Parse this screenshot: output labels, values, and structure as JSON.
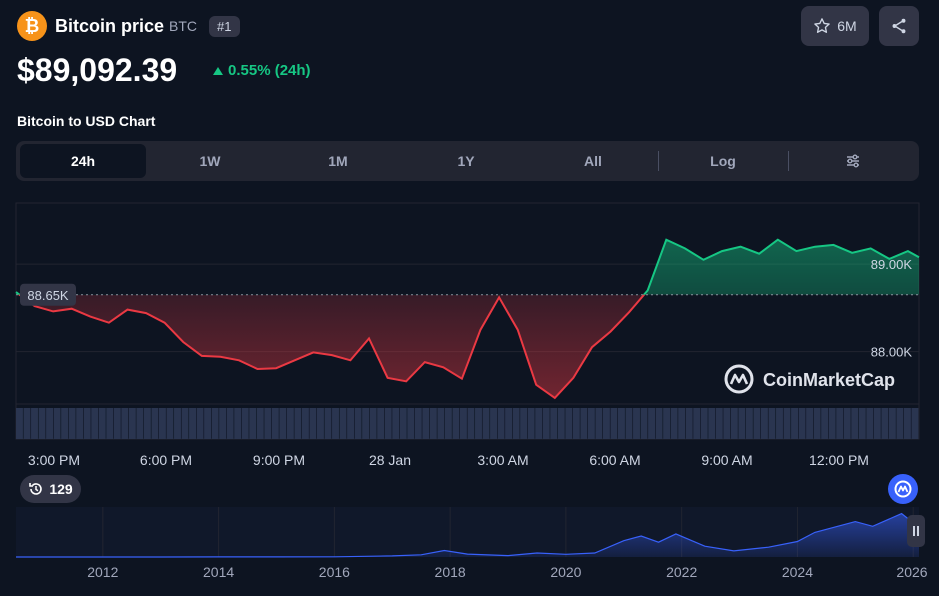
{
  "header": {
    "coin_logo_glyph": "₿",
    "title": "Bitcoin price",
    "symbol": "BTC",
    "rank": "#1",
    "watchlist_count": "6M"
  },
  "price": {
    "value": "$89,092.39",
    "change": "0.55% (24h)",
    "change_color": "#16c784"
  },
  "chart_title": "Bitcoin to USD Chart",
  "tabs": [
    {
      "label": "24h",
      "active": true
    },
    {
      "label": "1W"
    },
    {
      "label": "1M"
    },
    {
      "label": "1Y"
    },
    {
      "label": "All"
    },
    {
      "label": "Log"
    }
  ],
  "watermark": "CoinMarketCap",
  "history_badge": "129",
  "colors": {
    "up": "#16c784",
    "down": "#ea3943",
    "brush": "#3861fb",
    "background": "#0d1421"
  },
  "icons": [
    "bitcoin-logo",
    "star-icon",
    "share-icon",
    "sliders-icon",
    "history-icon",
    "coinmarketcap-logo",
    "pause-icon"
  ],
  "chart_data": [
    {
      "type": "line",
      "title": "",
      "xlabel": "",
      "ylabel": "",
      "baseline": 88650,
      "baseline_label": "88.65K",
      "ylim": [
        87400,
        89700
      ],
      "y_ticks": [
        {
          "value": 89000,
          "label": "89.00K"
        },
        {
          "value": 88000,
          "label": "88.00K"
        }
      ],
      "x_ticks": [
        "3:00 PM",
        "6:00 PM",
        "9:00 PM",
        "28 Jan",
        "3:00 AM",
        "6:00 AM",
        "9:00 AM",
        "12:00 PM"
      ],
      "x": [
        0,
        0.5,
        1,
        1.5,
        2,
        2.5,
        3,
        3.5,
        4,
        4.5,
        5,
        5.5,
        6,
        6.5,
        7,
        7.5,
        8,
        8.5,
        9,
        9.5,
        10,
        10.5,
        11,
        11.5,
        12,
        12.5,
        13,
        13.5,
        14,
        14.5,
        15,
        15.5,
        16,
        16.5,
        17,
        17.5,
        18,
        18.5,
        19,
        19.5,
        20,
        20.5,
        21,
        21.5,
        22,
        22.5,
        23,
        23.5,
        24,
        24.3
      ],
      "y": [
        88680,
        88520,
        88460,
        88490,
        88400,
        88330,
        88480,
        88440,
        88330,
        88110,
        87950,
        87940,
        87900,
        87800,
        87810,
        87900,
        87990,
        87960,
        87900,
        88150,
        87700,
        87660,
        87880,
        87820,
        87690,
        88250,
        88620,
        88250,
        87620,
        87470,
        87700,
        88050,
        88230,
        88450,
        88700,
        89280,
        89180,
        89050,
        89150,
        89200,
        89120,
        89280,
        89150,
        89200,
        89220,
        89130,
        89180,
        89060,
        89150,
        89080
      ],
      "volume_bars": 120,
      "note_split_color": "above baseline green, below baseline red"
    },
    {
      "type": "area",
      "title": "",
      "x_ticks": [
        "2012",
        "2014",
        "2016",
        "2018",
        "2020",
        "2022",
        "2024",
        "2026"
      ],
      "x": [
        2010.5,
        2012,
        2013,
        2014,
        2015,
        2016,
        2017,
        2017.5,
        2017.9,
        2018.3,
        2019,
        2019.5,
        2020,
        2020.5,
        2021,
        2021.3,
        2021.6,
        2021.9,
        2022.4,
        2022.9,
        2023.5,
        2024,
        2024.3,
        2025,
        2025.3,
        2025.8,
        2026,
        2026.1
      ],
      "y": [
        0,
        0,
        100,
        400,
        300,
        500,
        3000,
        6000,
        18000,
        8000,
        4000,
        11000,
        7500,
        11000,
        45000,
        58000,
        41000,
        64000,
        30000,
        17000,
        27000,
        43000,
        68000,
        98000,
        85000,
        120000,
        95000,
        89000
      ],
      "ylim": [
        0,
        130000
      ]
    }
  ]
}
